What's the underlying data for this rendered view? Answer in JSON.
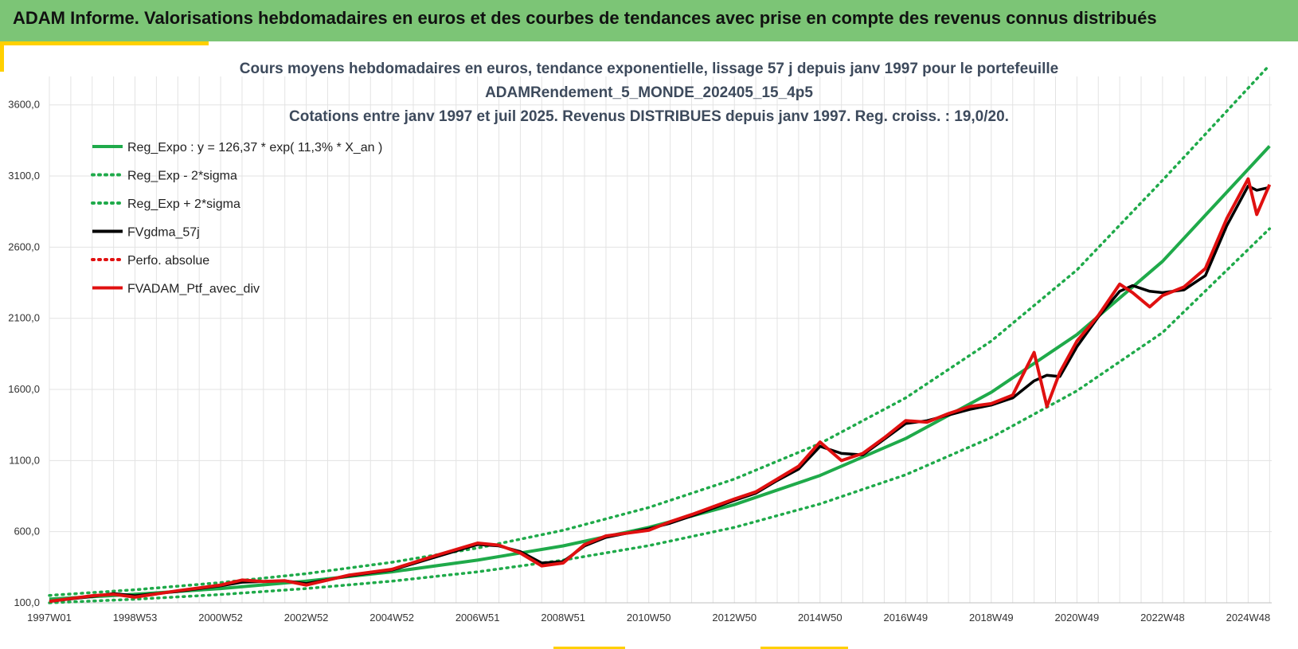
{
  "header": {
    "title": "ADAM Informe. Valorisations hebdomadaires en euros et des courbes de tendances avec prise en compte des revenus connus distribués"
  },
  "colors": {
    "header_bg": "#7cc576",
    "accent": "#ffd000",
    "trend": "#1faa4a",
    "actual": "#e01010",
    "smooth": "#000000"
  },
  "chart_data": {
    "type": "line",
    "title_lines": [
      "Cours moyens hebdomadaires  en euros, tendance exponentielle, lissage 57 j depuis janv 1997 pour le portefeuille",
      "ADAMRendement_5_MONDE_202405_15_4p5",
      "Cotations entre janv 1997 et juil 2025. Revenus DISTRIBUES depuis janv 1997. Reg. croiss. : 19,0/20."
    ],
    "x_ticks": [
      "1997W01",
      "1998W53",
      "2000W52",
      "2002W52",
      "2004W52",
      "2006W51",
      "2008W51",
      "2010W50",
      "2012W50",
      "2014W50",
      "2016W49",
      "2018W49",
      "2020W49",
      "2022W48",
      "2024W48"
    ],
    "x_tick_years": [
      1997.0,
      1999.0,
      2001.0,
      2003.0,
      2005.0,
      2007.0,
      2009.0,
      2011.0,
      2013.0,
      2015.0,
      2017.0,
      2019.0,
      2021.0,
      2023.0,
      2025.0
    ],
    "x_range": [
      1997.0,
      2025.55
    ],
    "y_ticks": [
      "100,0",
      "600,0",
      "1100,0",
      "1600,0",
      "2100,0",
      "2600,0",
      "3100,0",
      "3600,0"
    ],
    "y_tick_values": [
      100,
      600,
      1100,
      1600,
      2100,
      2600,
      3100,
      3600
    ],
    "y_range": [
      100,
      3800
    ],
    "grid": true,
    "legend_position": "top-left",
    "legend": [
      {
        "label": "Reg_Expo : y = 126,37 * exp( 11,3% *  X_an )",
        "style": "solid",
        "color": "#1faa4a"
      },
      {
        "label": "Reg_Exp - 2*sigma",
        "style": "dotted",
        "color": "#1faa4a"
      },
      {
        "label": "Reg_Exp + 2*sigma",
        "style": "dotted",
        "color": "#1faa4a"
      },
      {
        "label": "FVgdma_57j",
        "style": "solid",
        "color": "#000000"
      },
      {
        "label": "Perfo. absolue",
        "style": "dotted",
        "color": "#e01010"
      },
      {
        "label": "FVADAM_Ptf_avec_div",
        "style": "solid",
        "color": "#e01010"
      }
    ],
    "series": [
      {
        "name": "Reg_Expo : y = 126,37 * exp( 11,3% *  X_an )",
        "x": [
          1997.0,
          1999.0,
          2001.0,
          2003.0,
          2005.0,
          2007.0,
          2009.0,
          2011.0,
          2013.0,
          2015.0,
          2017.0,
          2019.0,
          2021.0,
          2023.0,
          2025.5
        ],
        "y": [
          126,
          160,
          200,
          252,
          318,
          400,
          500,
          630,
          790,
          995,
          1255,
          1580,
          1985,
          2500,
          3310
        ]
      },
      {
        "name": "Reg_Exp - 2*sigma",
        "x": [
          1997.0,
          1999.0,
          2001.0,
          2003.0,
          2005.0,
          2007.0,
          2009.0,
          2011.0,
          2013.0,
          2015.0,
          2017.0,
          2019.0,
          2021.0,
          2023.0,
          2025.5
        ],
        "y": [
          100,
          125,
          158,
          200,
          252,
          318,
          400,
          502,
          630,
          795,
          1000,
          1262,
          1590,
          2000,
          2730
        ]
      },
      {
        "name": "Reg_Exp + 2*sigma",
        "x": [
          1997.0,
          1999.0,
          2001.0,
          2003.0,
          2005.0,
          2007.0,
          2009.0,
          2011.0,
          2013.0,
          2015.0,
          2017.0,
          2019.0,
          2021.0,
          2023.0,
          2025.5
        ],
        "y": [
          152,
          192,
          242,
          305,
          385,
          485,
          610,
          770,
          970,
          1220,
          1540,
          1940,
          2440,
          3070,
          3880
        ]
      },
      {
        "name": "FVgdma_57j",
        "x": [
          1997.0,
          1998.0,
          1998.5,
          1999.0,
          2000.0,
          2001.0,
          2001.5,
          2002.0,
          2002.5,
          2003.0,
          2004.0,
          2005.0,
          2006.0,
          2007.0,
          2007.5,
          2008.0,
          2008.5,
          2009.0,
          2009.5,
          2010.0,
          2011.0,
          2011.5,
          2012.0,
          2013.0,
          2013.5,
          2014.0,
          2014.5,
          2015.0,
          2015.5,
          2016.0,
          2016.5,
          2017.0,
          2017.5,
          2018.0,
          2018.5,
          2019.0,
          2019.5,
          2020.0,
          2020.3,
          2020.6,
          2021.0,
          2021.5,
          2022.0,
          2022.3,
          2022.7,
          2023.0,
          2023.5,
          2024.0,
          2024.5,
          2025.0,
          2025.2,
          2025.5
        ],
        "y": [
          110,
          145,
          165,
          150,
          180,
          220,
          245,
          250,
          255,
          235,
          290,
          330,
          420,
          510,
          500,
          460,
          380,
          390,
          500,
          560,
          620,
          660,
          710,
          820,
          870,
          960,
          1040,
          1200,
          1150,
          1140,
          1250,
          1360,
          1380,
          1420,
          1460,
          1490,
          1540,
          1660,
          1700,
          1690,
          1900,
          2110,
          2290,
          2330,
          2290,
          2280,
          2300,
          2400,
          2750,
          3030,
          3000,
          3020
        ]
      },
      {
        "name": "FVADAM_Ptf_avec_div",
        "x": [
          1997.0,
          1998.0,
          1998.5,
          1999.0,
          2000.0,
          2001.0,
          2001.5,
          2002.0,
          2002.5,
          2003.0,
          2004.0,
          2005.0,
          2006.0,
          2007.0,
          2007.5,
          2008.0,
          2008.5,
          2009.0,
          2009.5,
          2010.0,
          2011.0,
          2011.5,
          2012.0,
          2013.0,
          2013.5,
          2014.0,
          2014.5,
          2015.0,
          2015.5,
          2016.0,
          2016.5,
          2017.0,
          2017.5,
          2018.0,
          2018.5,
          2019.0,
          2019.5,
          2020.0,
          2020.3,
          2020.6,
          2021.0,
          2021.5,
          2022.0,
          2022.3,
          2022.7,
          2023.0,
          2023.5,
          2024.0,
          2024.5,
          2025.0,
          2025.2,
          2025.5
        ],
        "y": [
          110,
          150,
          160,
          140,
          185,
          225,
          260,
          250,
          255,
          225,
          295,
          335,
          430,
          520,
          505,
          450,
          360,
          380,
          510,
          570,
          610,
          670,
          720,
          830,
          880,
          970,
          1060,
          1230,
          1100,
          1150,
          1260,
          1380,
          1370,
          1430,
          1480,
          1500,
          1560,
          1860,
          1480,
          1720,
          1940,
          2120,
          2340,
          2280,
          2180,
          2260,
          2320,
          2450,
          2800,
          3080,
          2830,
          3040
        ]
      }
    ]
  }
}
